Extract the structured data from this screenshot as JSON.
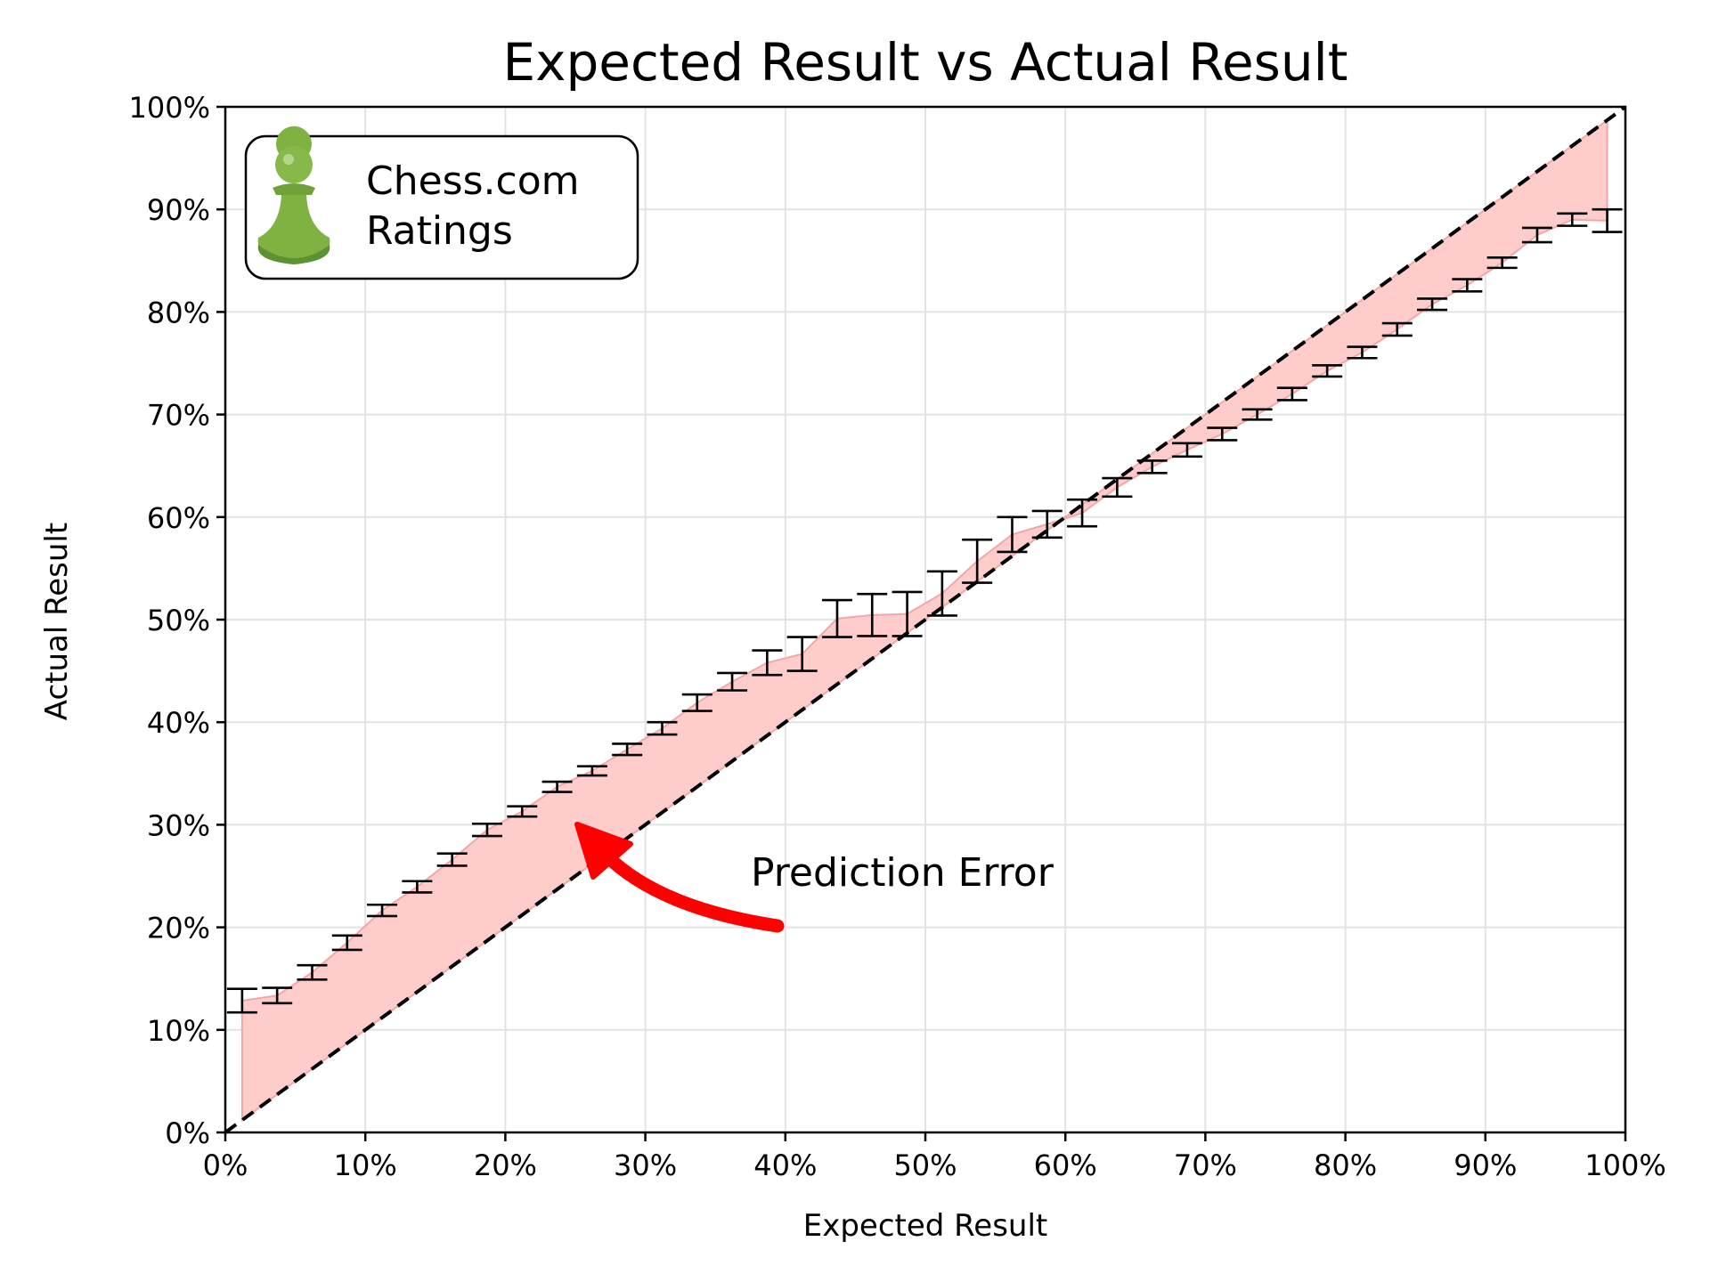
{
  "chart_data": {
    "type": "scatter",
    "title": "Expected Result vs Actual Result",
    "xlabel": "Expected Result",
    "ylabel": "Actual Result",
    "xlim": [
      0,
      100
    ],
    "ylim": [
      0,
      100
    ],
    "xticks": [
      "0%",
      "10%",
      "20%",
      "30%",
      "40%",
      "50%",
      "60%",
      "70%",
      "80%",
      "90%",
      "100%"
    ],
    "yticks": [
      "0%",
      "10%",
      "20%",
      "30%",
      "40%",
      "50%",
      "60%",
      "70%",
      "80%",
      "90%",
      "100%"
    ],
    "grid": true,
    "legend": {
      "label": "Chess.com\nRatings",
      "line1": "Chess.com",
      "line2": "Ratings",
      "icon": "pawn-icon",
      "placement": "upper-left"
    },
    "annotation": {
      "text": "Prediction Error",
      "arrow_color": "#ff0000"
    },
    "fill_color": "#ffcccc",
    "fill_edge_color": "#f4a6a6",
    "reference_line": {
      "style": "dashed",
      "color": "#000000",
      "from": [
        0,
        0
      ],
      "to": [
        100,
        100
      ]
    },
    "series": [
      {
        "x": [
          1.2,
          3.7,
          6.2,
          8.7,
          11.2,
          13.7,
          16.2,
          18.7,
          21.2,
          23.7,
          26.2,
          28.7,
          31.2,
          33.7,
          36.2,
          38.7,
          41.2,
          43.7,
          46.2,
          48.7,
          51.2,
          53.7,
          56.2,
          58.7,
          61.2,
          63.7,
          66.2,
          68.7,
          71.2,
          73.7,
          76.2,
          78.7,
          81.2,
          83.7,
          86.2,
          88.7,
          91.2,
          93.7,
          96.2,
          98.7
        ],
        "ylow": [
          11.7,
          12.6,
          14.9,
          17.8,
          21.1,
          23.4,
          26.0,
          28.9,
          30.8,
          33.2,
          34.8,
          36.8,
          38.8,
          41.1,
          43.1,
          44.6,
          45.0,
          48.3,
          48.4,
          48.4,
          50.4,
          53.6,
          56.6,
          58.0,
          59.1,
          62.0,
          64.3,
          65.9,
          67.5,
          69.5,
          71.4,
          73.7,
          75.5,
          77.7,
          80.2,
          82.0,
          84.3,
          86.8,
          88.4,
          87.8
        ],
        "yhigh": [
          14.0,
          14.1,
          16.3,
          19.2,
          22.2,
          24.5,
          27.2,
          30.1,
          31.8,
          34.2,
          35.7,
          37.9,
          40.0,
          42.7,
          44.8,
          47.0,
          48.3,
          51.9,
          52.5,
          52.7,
          54.7,
          57.8,
          60.0,
          60.6,
          61.7,
          63.8,
          65.5,
          67.2,
          68.7,
          70.5,
          72.6,
          74.8,
          76.6,
          78.9,
          81.3,
          83.2,
          85.3,
          88.2,
          89.6,
          90.0
        ]
      }
    ]
  }
}
